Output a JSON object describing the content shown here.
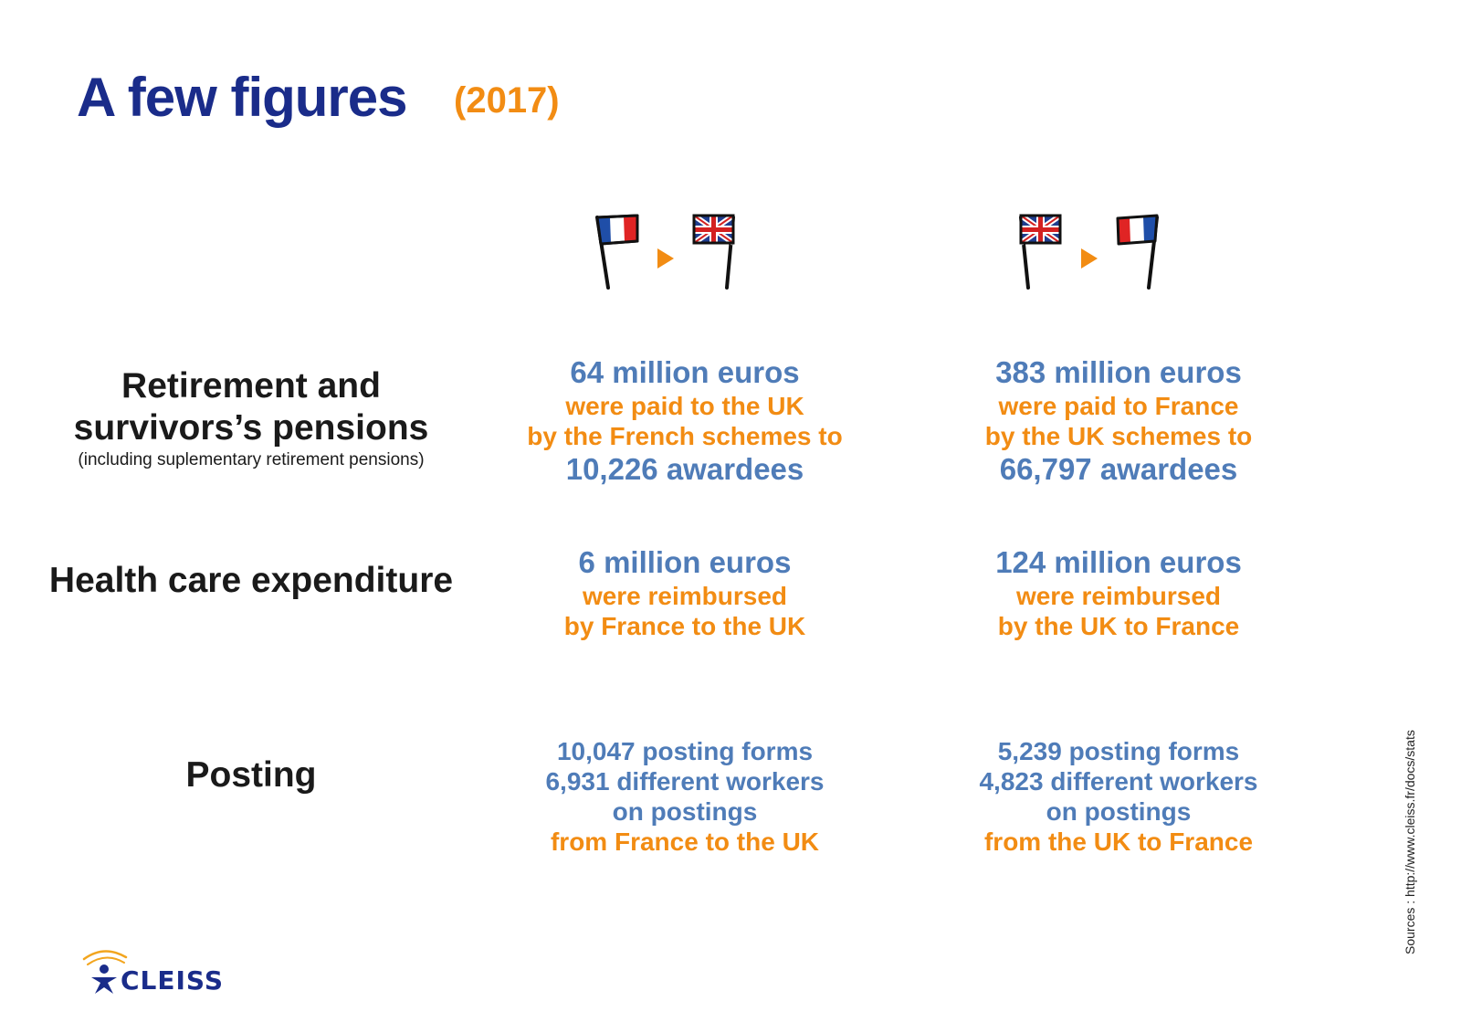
{
  "header": {
    "title": "A few figures",
    "year": "(2017)"
  },
  "rows": {
    "retirement": {
      "label_line1": "Retirement and",
      "label_line2": "survivors’s pensions",
      "label_sub": "(including suplementary retirement pensions)",
      "fr_to_uk": {
        "amount": "64 million euros",
        "line2": "were paid to the UK",
        "line3": "by the French schemes to",
        "awardees": "10,226 awardees"
      },
      "uk_to_fr": {
        "amount": "383 million euros",
        "line2": "were paid to France",
        "line3": "by the UK schemes to",
        "awardees": "66,797 awardees"
      }
    },
    "health": {
      "label": "Health care expenditure",
      "fr_to_uk": {
        "amount": "6 million euros",
        "line2": "were reimbursed",
        "line3": "by France to the UK"
      },
      "uk_to_fr": {
        "amount": "124 million euros",
        "line2": "were reimbursed",
        "line3": "by the UK to France"
      }
    },
    "posting": {
      "label": "Posting",
      "fr_to_uk": {
        "forms": "10,047 posting forms",
        "workers": "6,931 different workers",
        "on": "on postings",
        "direction": "from France to the UK"
      },
      "uk_to_fr": {
        "forms": "5,239 posting forms",
        "workers": "4,823 different workers",
        "on": "on postings",
        "direction": "from the UK to France"
      }
    }
  },
  "footer": {
    "source": "Sources : http://www.cleiss.fr/docs/stats",
    "logo_text": "CLEISS"
  },
  "colors": {
    "title_navy": "#1a2c8a",
    "accent_orange": "#f28c13",
    "figure_blue": "#4f7cb8"
  },
  "icons": [
    "france-flag-icon",
    "uk-flag-icon",
    "arrow-right-icon",
    "cleiss-logo-icon"
  ]
}
